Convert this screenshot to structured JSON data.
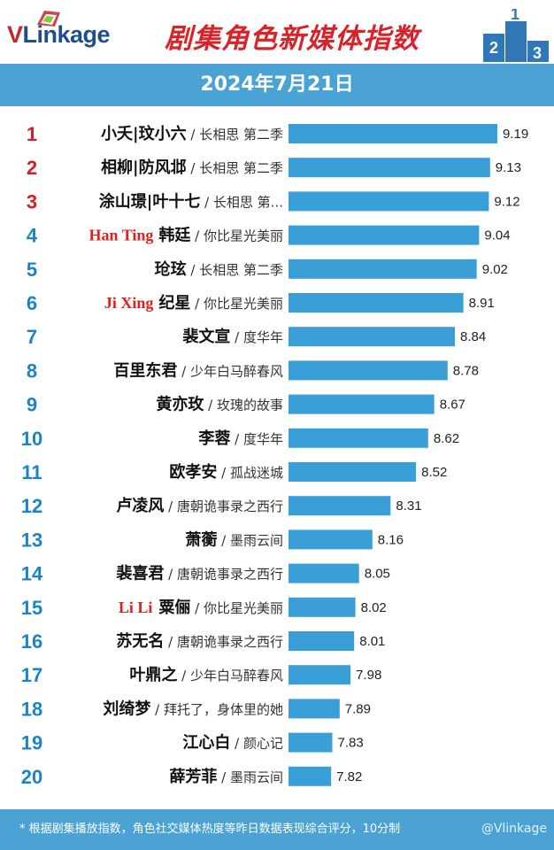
{
  "header": {
    "logo": "VLinkage",
    "title": "剧集角色新媒体指数",
    "date": "2024年7月21日"
  },
  "footer": {
    "note": "* 根据剧集播放指数，角色社交媒体热度等昨日数据表现综合评分，10分制",
    "watermark": "@Vlinkage"
  },
  "colors": {
    "bar": "#3a9fd6",
    "band": "#4aa3d4",
    "rank_top": "#d11f2a",
    "rank_rest": "#1b84c9",
    "title": "#d9232b",
    "english_label": "#e0201c"
  },
  "chart_data": {
    "type": "bar",
    "orientation": "horizontal",
    "title": "剧集角色新媒体指数",
    "rows": [
      {
        "rank": "1",
        "name": "小夭|玟小六",
        "show": "长相思 第二季",
        "value": 9.19,
        "english": ""
      },
      {
        "rank": "2",
        "name": "相柳|防风邶",
        "show": "长相思 第二季",
        "value": 9.13,
        "english": ""
      },
      {
        "rank": "3",
        "name": "涂山璟|叶十七",
        "show": "长相思 第...",
        "value": 9.12,
        "english": ""
      },
      {
        "rank": "4",
        "name": "韩廷",
        "show": "你比星光美丽",
        "value": 9.04,
        "english": "Han Ting"
      },
      {
        "rank": "5",
        "name": "玱玹",
        "show": "长相思 第二季",
        "value": 9.02,
        "english": ""
      },
      {
        "rank": "6",
        "name": "纪星",
        "show": "你比星光美丽",
        "value": 8.91,
        "english": "Ji Xing"
      },
      {
        "rank": "7",
        "name": "裴文宣",
        "show": "度华年",
        "value": 8.84,
        "english": ""
      },
      {
        "rank": "8",
        "name": "百里东君",
        "show": "少年白马醉春风",
        "value": 8.78,
        "english": ""
      },
      {
        "rank": "9",
        "name": "黄亦玫",
        "show": "玫瑰的故事",
        "value": 8.67,
        "english": ""
      },
      {
        "rank": "10",
        "name": "李蓉",
        "show": "度华年",
        "value": 8.62,
        "english": ""
      },
      {
        "rank": "11",
        "name": "欧孝安",
        "show": "孤战迷城",
        "value": 8.52,
        "english": ""
      },
      {
        "rank": "12",
        "name": "卢凌风",
        "show": "唐朝诡事录之西行",
        "value": 8.31,
        "english": ""
      },
      {
        "rank": "13",
        "name": "萧蘅",
        "show": "墨雨云间",
        "value": 8.16,
        "english": ""
      },
      {
        "rank": "14",
        "name": "裴喜君",
        "show": "唐朝诡事录之西行",
        "value": 8.05,
        "english": ""
      },
      {
        "rank": "15",
        "name": "粟俪",
        "show": "你比星光美丽",
        "value": 8.02,
        "english": "Li Li"
      },
      {
        "rank": "16",
        "name": "苏无名",
        "show": "唐朝诡事录之西行",
        "value": 8.01,
        "english": ""
      },
      {
        "rank": "17",
        "name": "叶鼎之",
        "show": "少年白马醉春风",
        "value": 7.98,
        "english": ""
      },
      {
        "rank": "18",
        "name": "刘绮梦",
        "show": "拜托了，身体里的她",
        "value": 7.89,
        "english": ""
      },
      {
        "rank": "19",
        "name": "江心白",
        "show": "颜心记",
        "value": 7.83,
        "english": ""
      },
      {
        "rank": "20",
        "name": "薛芳菲",
        "show": "墨雨云间",
        "value": 7.82,
        "english": ""
      }
    ],
    "separator": " / "
  }
}
